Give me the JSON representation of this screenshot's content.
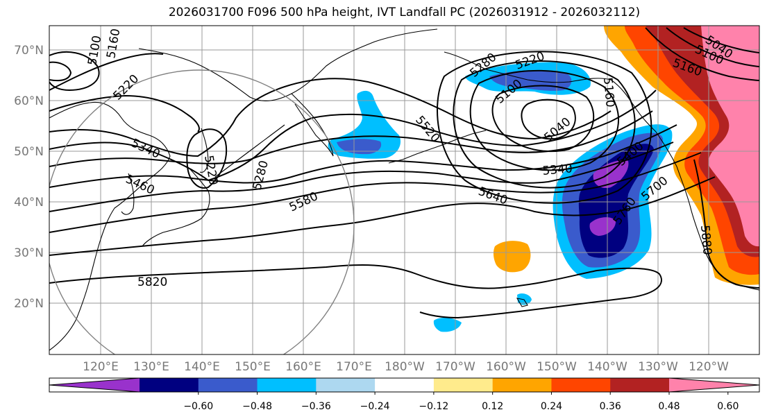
{
  "title": "2026031700 F096 500 hPa height, IVT Landfall PC (2026031912 - 2026032112)",
  "map": {
    "lat_labels": [
      "70°N",
      "60°N",
      "50°N",
      "40°N",
      "30°N",
      "20°N"
    ],
    "lon_labels": [
      "120°E",
      "130°E",
      "140°E",
      "150°E",
      "160°E",
      "170°E",
      "180°W",
      "170°W",
      "160°W",
      "150°W",
      "140°W",
      "130°W",
      "120°W"
    ]
  },
  "contours": {
    "labels": [
      "5100",
      "5160",
      "5220",
      "5340",
      "5460",
      "5220",
      "5280",
      "5580",
      "5820",
      "5520",
      "5280",
      "5220",
      "5100",
      "5040",
      "5160",
      "5340",
      "5400",
      "5640",
      "5700",
      "5760",
      "5880",
      "5040",
      "5100",
      "5160"
    ]
  },
  "colorbar": {
    "colors": [
      "#9932CC",
      "#000080",
      "#3A5BCC",
      "#00BFFF",
      "#ADD8F0",
      "#FFFFFF",
      "#FFEB8C",
      "#FFA500",
      "#FF4500",
      "#B22222",
      "#FF82AB"
    ],
    "ticks": [
      "−0.60",
      "−0.48",
      "−0.36",
      "−0.24",
      "−0.12",
      "0.12",
      "0.24",
      "0.36",
      "0.48",
      "0.60"
    ]
  }
}
